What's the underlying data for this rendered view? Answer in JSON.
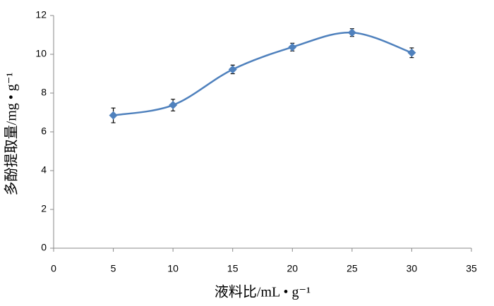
{
  "chart_data": {
    "type": "line",
    "x_label": "液料比/mL • g⁻¹",
    "y_label": "多酚提取量/mg • g⁻¹",
    "x": [
      5,
      10,
      15,
      20,
      25,
      30
    ],
    "series": [
      {
        "color": "#4f81bd",
        "values": [
          6.85,
          7.38,
          9.22,
          10.37,
          11.12,
          10.08
        ],
        "errors": [
          0.38,
          0.3,
          0.22,
          0.2,
          0.2,
          0.25
        ]
      }
    ],
    "xlim": [
      0,
      35
    ],
    "xticks": [
      0,
      5,
      10,
      15,
      20,
      25,
      30,
      35
    ],
    "ylim": [
      0,
      12
    ],
    "yticks": [
      0,
      2,
      4,
      6,
      8,
      10,
      12
    ],
    "smooth": true,
    "grid": false
  }
}
